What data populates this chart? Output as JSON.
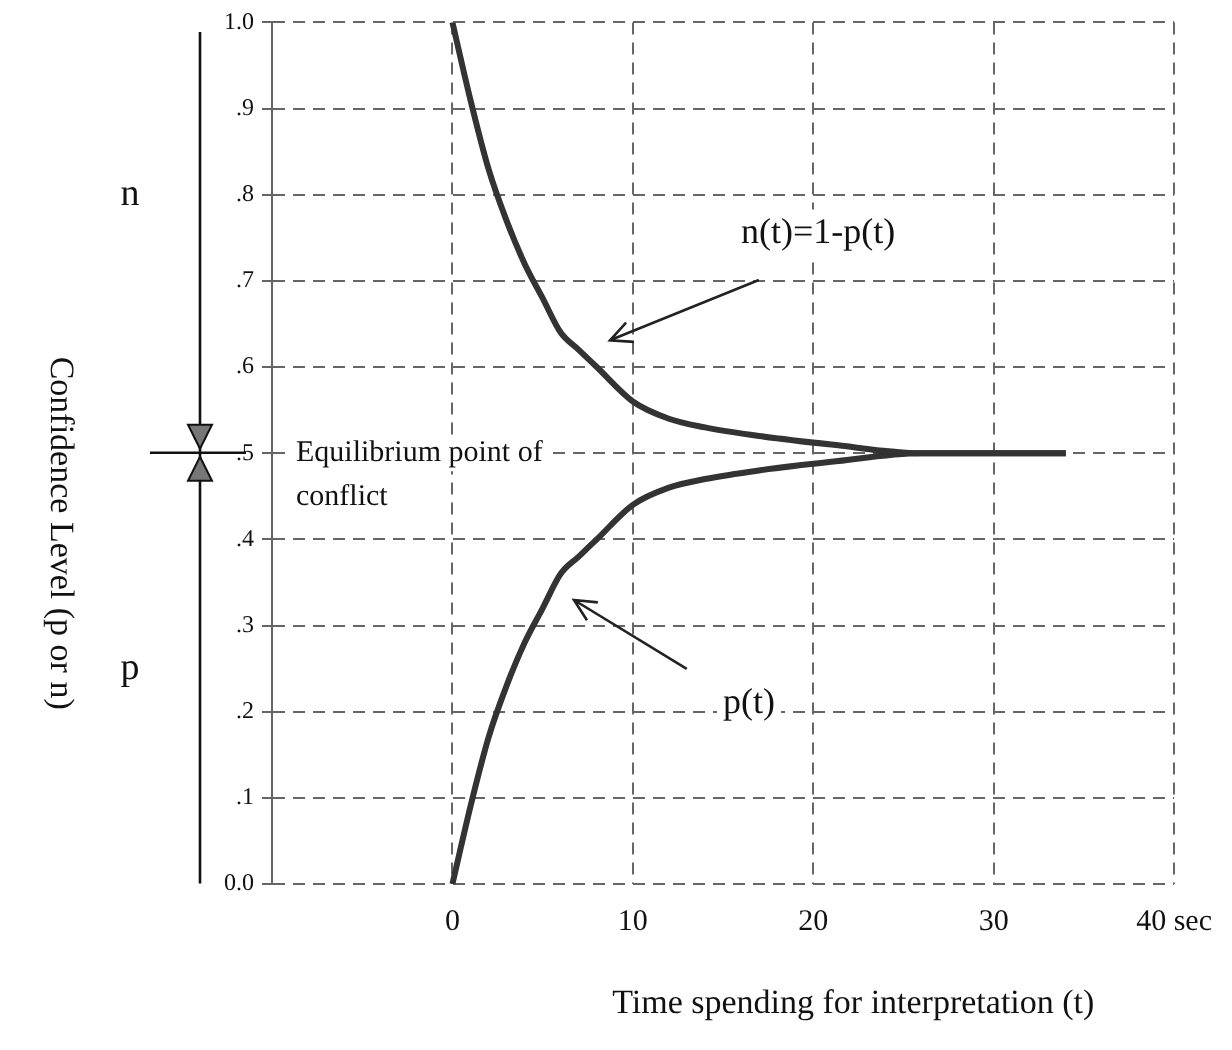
{
  "chart_data": {
    "type": "line",
    "xlabel": "Time spending for interpretation (t)",
    "ylabel": "Confidence Level (p or n)",
    "x": [
      0,
      1,
      2,
      3,
      4,
      5,
      6,
      7,
      8,
      10,
      12,
      14,
      17,
      21,
      26,
      34
    ],
    "series": [
      {
        "color": "#333333",
        "values": [
          1.0,
          0.91,
          0.83,
          0.77,
          0.72,
          0.68,
          0.64,
          0.62,
          0.6,
          0.56,
          0.54,
          0.53,
          0.52,
          0.51,
          0.5,
          0.5
        ]
      },
      {
        "color": "#333333",
        "values": [
          0,
          0.09,
          0.17,
          0.23,
          0.28,
          0.32,
          0.36,
          0.38,
          0.4,
          0.44,
          0.46,
          0.47,
          0.48,
          0.49,
          0.5,
          0.5
        ]
      }
    ],
    "xlim": [
      -10,
      40
    ],
    "xticks": [
      0,
      10,
      20,
      30,
      {
        "value": 40,
        "label": "40 sec"
      }
    ],
    "ylim": [
      0,
      1
    ],
    "yticks": [
      {
        "value": 0,
        "label": "0.0"
      },
      {
        "value": 0.1,
        "label": ".1"
      },
      {
        "value": 0.2,
        "label": ".2"
      },
      {
        "value": 0.3,
        "label": ".3"
      },
      {
        "value": 0.4,
        "label": ".4"
      },
      {
        "value": 0.5,
        "label": ".5"
      },
      {
        "value": 0.6,
        "label": ".6"
      },
      {
        "value": 0.7,
        "label": ".7"
      },
      {
        "value": 0.8,
        "label": ".8"
      },
      {
        "value": 0.9,
        "label": ".9"
      },
      {
        "value": 1,
        "label": "1.0"
      }
    ],
    "annotations": [
      "n(t)=1-p(t)",
      "p(t)",
      "Equilibrium point of conflict",
      "n",
      "p"
    ],
    "grid": true,
    "legend": false,
    "marker": "none",
    "line_style": "solid"
  }
}
